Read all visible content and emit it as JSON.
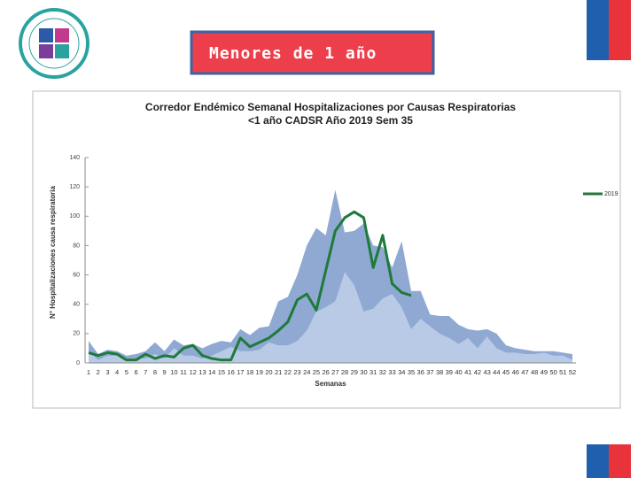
{
  "slide_title": "Menores de 1 año",
  "chart_data": {
    "type": "area",
    "title": "Corredor Endémico Semanal Hospitalizaciones por Causas Respiratorias",
    "subtitle": "<1 año CADSR Año 2019 Sem 35",
    "x_label": "Semanas",
    "y_label": "N° Hospitalizaciones causa respiratoria",
    "categories": [
      "1",
      "2",
      "3",
      "4",
      "5",
      "6",
      "7",
      "8",
      "9",
      "10",
      "11",
      "12",
      "13",
      "14",
      "15",
      "16",
      "17",
      "18",
      "19",
      "20",
      "21",
      "22",
      "23",
      "24",
      "25",
      "26",
      "27",
      "28",
      "29",
      "30",
      "31",
      "32",
      "33",
      "34",
      "35",
      "36",
      "37",
      "38",
      "39",
      "40",
      "41",
      "42",
      "43",
      "44",
      "45",
      "46",
      "47",
      "48",
      "49",
      "50",
      "51",
      "52"
    ],
    "series": [
      {
        "color": "#8fa9d3",
        "values": [
          15,
          6,
          9,
          8,
          5,
          6,
          8,
          14,
          8,
          16,
          12,
          13,
          10,
          13,
          15,
          14,
          23,
          19,
          24,
          25,
          42,
          45,
          60,
          80,
          92,
          87,
          118,
          89,
          90,
          95,
          80,
          79,
          65,
          83,
          49,
          49,
          33,
          32,
          32,
          26,
          23,
          22,
          23,
          20,
          12,
          10,
          9,
          8,
          8,
          8,
          7,
          6
        ]
      },
      {
        "color": "#b9cae6",
        "values": [
          8,
          2,
          5,
          5,
          3,
          3,
          3,
          6,
          3,
          10,
          5,
          5,
          3,
          5,
          8,
          11,
          8,
          8,
          9,
          14,
          12,
          12,
          15,
          22,
          35,
          38,
          42,
          62,
          53,
          35,
          37,
          44,
          47,
          38,
          23,
          30,
          25,
          20,
          17,
          13,
          17,
          10,
          18,
          10,
          7,
          7,
          6,
          6,
          7,
          5,
          5,
          2
        ]
      },
      {
        "name": "2019",
        "type": "line",
        "color": "#1e7a3a",
        "values": [
          7,
          5,
          7,
          6,
          2,
          2,
          6,
          3,
          5,
          4,
          10,
          12,
          5,
          3,
          2,
          2,
          17,
          11,
          14,
          17,
          22,
          28,
          43,
          47,
          36,
          63,
          90,
          99,
          103,
          99,
          65,
          87,
          54,
          48,
          46,
          null,
          null,
          null,
          null,
          null,
          null,
          null,
          null,
          null,
          null,
          null,
          null,
          null,
          null,
          null,
          null,
          null
        ]
      }
    ],
    "ylim": [
      0,
      140
    ],
    "yticks": [
      0,
      20,
      40,
      60,
      80,
      100,
      120,
      140
    ],
    "grid": false,
    "legend": "right"
  }
}
